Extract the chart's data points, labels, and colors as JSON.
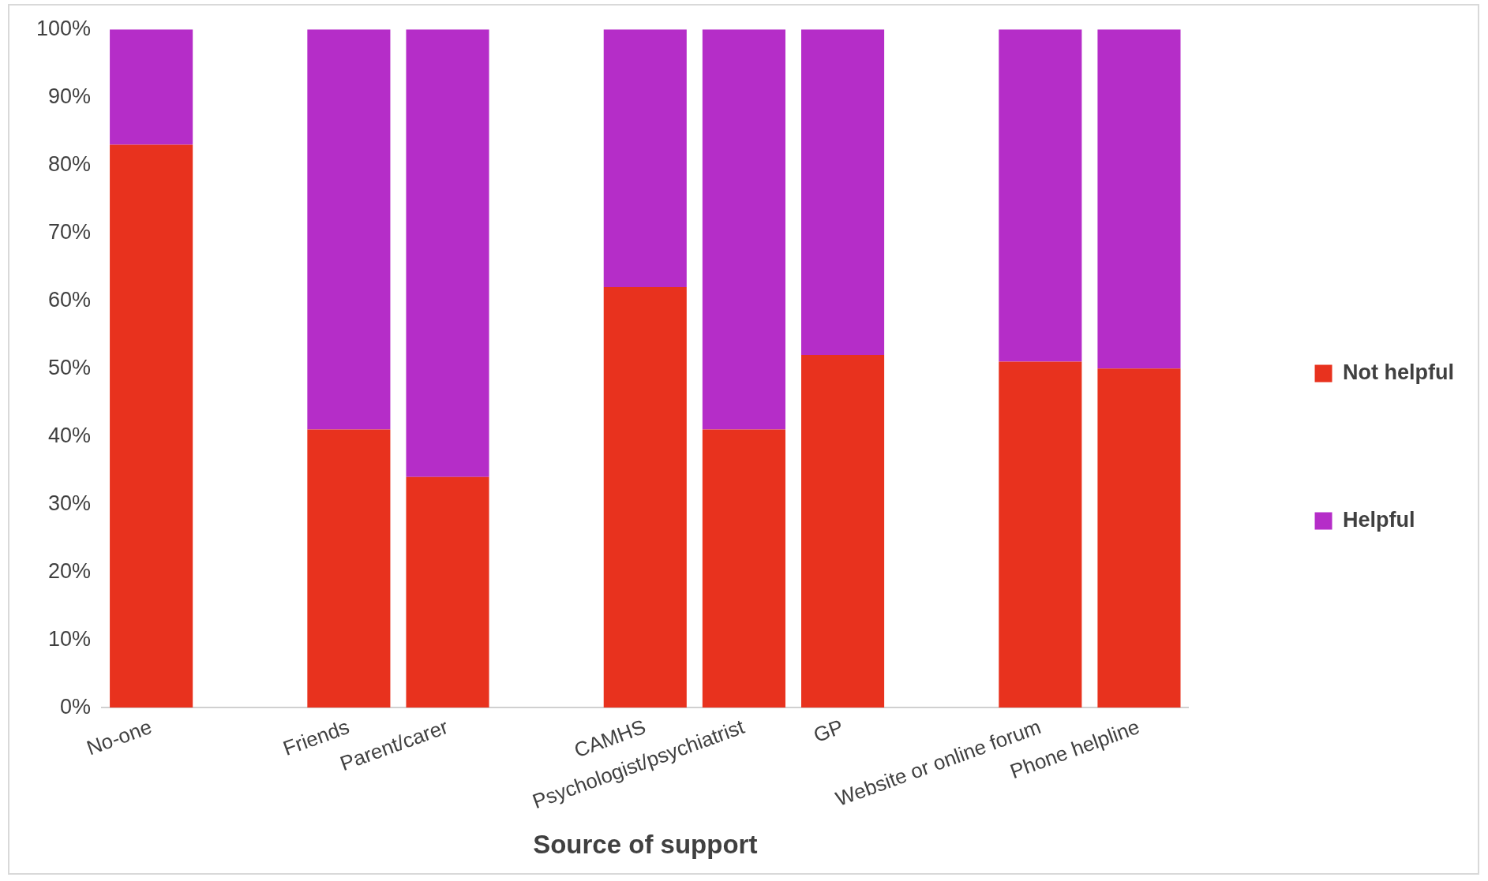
{
  "chart_data": {
    "type": "bar",
    "stacked": true,
    "xlabel": "Source of support",
    "categories": [
      "No-one",
      null,
      "Friends",
      "Parent/carer",
      null,
      "CAMHS",
      "Psychologist/psychiatrist",
      "GP",
      null,
      "Website or online forum",
      "Phone helpline"
    ],
    "series": [
      {
        "name": "Not helpful",
        "color": "#e8321e",
        "values": [
          83,
          null,
          41,
          34,
          null,
          62,
          41,
          52,
          null,
          51,
          50
        ]
      },
      {
        "name": "Helpful",
        "color": "#b52dc8",
        "values": [
          17,
          null,
          59,
          66,
          null,
          38,
          59,
          48,
          null,
          49,
          50
        ]
      }
    ],
    "ylim": [
      0,
      100
    ],
    "yticks": [
      {
        "value": 0,
        "label": "0%"
      },
      {
        "value": 10,
        "label": "10%"
      },
      {
        "value": 20,
        "label": "20%"
      },
      {
        "value": 30,
        "label": "30%"
      },
      {
        "value": 40,
        "label": "40%"
      },
      {
        "value": 50,
        "label": "50%"
      },
      {
        "value": 60,
        "label": "60%"
      },
      {
        "value": 70,
        "label": "70%"
      },
      {
        "value": 80,
        "label": "80%"
      },
      {
        "value": 90,
        "label": "90%"
      },
      {
        "value": 100,
        "label": "100%"
      }
    ],
    "grid": false,
    "legend": "right"
  }
}
